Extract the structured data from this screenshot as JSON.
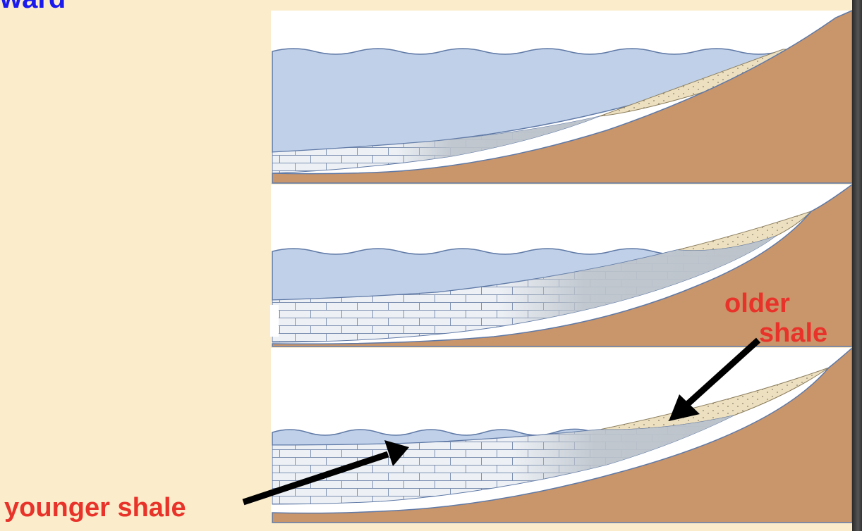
{
  "title_fragment": "ward",
  "labels": {
    "older_line1": "older",
    "older_line2": "shale",
    "younger": "younger shale"
  },
  "colors": {
    "background": "#fbeccb",
    "title": "#1a1aee",
    "label": "#e8332a",
    "water": "#bfd0e8",
    "bedrock": "#c9956a",
    "sand": "#e9dcb8",
    "limestone": "#edf1f6",
    "shale": "#b8bfc8"
  },
  "panels": [
    "top",
    "middle",
    "bottom"
  ]
}
